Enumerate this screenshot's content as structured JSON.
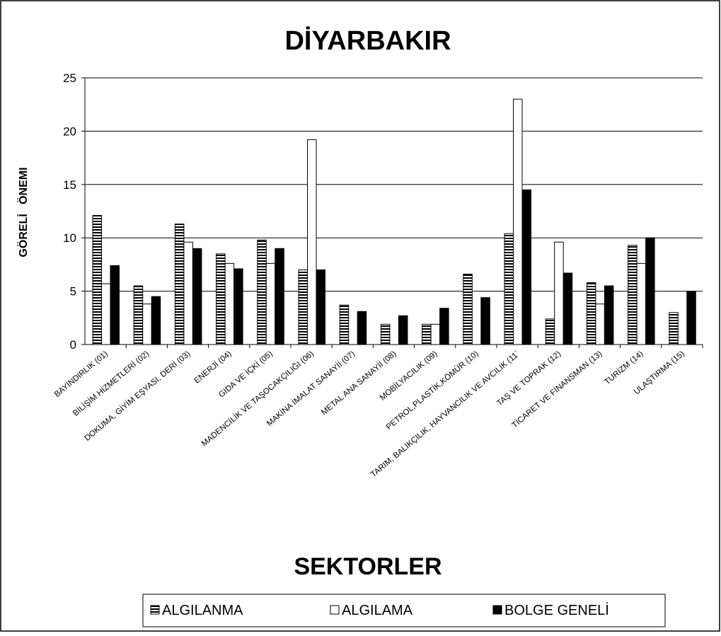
{
  "chart_data": {
    "type": "bar",
    "title": "DİYARBAKIR",
    "x_label": "SEKTORLER",
    "y_label": "GÖRELİ   ÖNEMI",
    "categories": [
      "BAYINDIRLIK (01)",
      "BİLİŞİM HİZMETLERİ (02)",
      "DOKUMA, GİYİM EŞYASI, DERİ (03)",
      "ENERJİ (04)",
      "GIDA VE İÇKİ (05)",
      "MADENCİLİK VE TAŞOCAKÇILIĞI (06)",
      "MAKİNA İMALAT SANAYİİ (07)",
      "METAL ANA SANAYİİ (08)",
      "MOBİLYACILIK (09)",
      "PETROL,PLASTİK,KÖMÜR (10)",
      "TARIM, BALIKÇILIK, HAYVANCILIK VE AVCILIK (11`",
      "TAŞ VE TOPRAK (12)",
      "TİCARET VE FİNANSMAN (13)",
      "TURİZM (14)",
      "ULAŞTIRMA (15)"
    ],
    "series": [
      {
        "name": "ALGILANMA",
        "color": "#000000",
        "pattern": "horizontal-stripes",
        "values": [
          12.1,
          5.5,
          11.3,
          8.5,
          9.8,
          7.0,
          3.7,
          1.9,
          1.9,
          6.6,
          10.4,
          2.4,
          5.8,
          9.3,
          3.0
        ]
      },
      {
        "name": "ALGILAMA",
        "color": "#ffffff",
        "values": [
          5.7,
          3.8,
          9.6,
          7.6,
          7.6,
          19.2,
          0,
          0,
          1.9,
          0,
          23.0,
          9.6,
          3.8,
          7.6,
          0
        ]
      },
      {
        "name": "BOLGE GENELİ",
        "color": "#000000",
        "values": [
          7.4,
          4.5,
          9.0,
          7.1,
          9.0,
          7.0,
          3.1,
          2.7,
          3.4,
          4.4,
          14.5,
          6.7,
          5.5,
          10.0,
          5.0
        ]
      }
    ],
    "ylim": [
      0,
      25
    ],
    "yticks": [
      0,
      5,
      10,
      15,
      20,
      25
    ],
    "grid": true,
    "legend": "bottom"
  }
}
